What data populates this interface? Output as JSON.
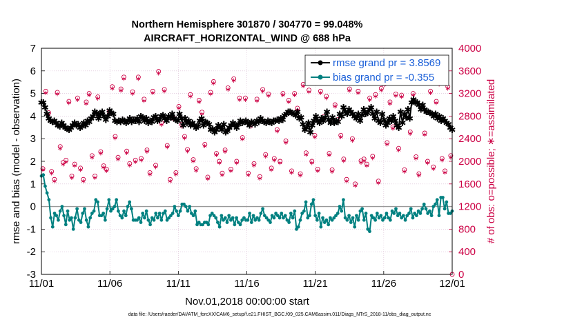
{
  "colors": {
    "rmse": "#000000",
    "bias": "#008080",
    "counts": "#cc0044",
    "rmse_legend_text": "#1a5fd8",
    "grid": "#d9bcd3"
  },
  "chart_data": {
    "type": "line",
    "title_line1": "Northern Hemisphere 301870 / 304770 = 99.048%",
    "title_line2": "AIRCRAFT_HORIZONTAL_WIND @ 688 hPa",
    "xlabel": "Nov.01,2018 00:00:00 start",
    "ylabel_left": "rmse and bias (model - observation)",
    "ylabel_right": "# of obs: o=possible; ∗=assimilated",
    "footer": "data file: /Users/raeder/DAI/ATM_forcXX/CAM6_setup/f.e21.FHIST_BGC.f09_025.CAM6assim.011/Diags_NTrS_2018-11/obs_diag_output.nc",
    "xlim": [
      1,
      31
    ],
    "ylim_left": [
      -3,
      7
    ],
    "ylim_right": [
      0,
      4000
    ],
    "x_ticks": [
      1,
      6,
      11,
      16,
      21,
      26,
      31
    ],
    "x_tick_labels": [
      "11/01",
      "11/06",
      "11/11",
      "11/16",
      "11/21",
      "11/26",
      "12/01"
    ],
    "y_ticks_left": [
      -3,
      -2,
      -1,
      0,
      1,
      2,
      3,
      4,
      5,
      6,
      7
    ],
    "y_ticks_right": [
      0,
      400,
      800,
      1200,
      1600,
      2000,
      2400,
      2800,
      3200,
      3600,
      4000
    ],
    "grid": true,
    "legend_position": "top-right",
    "legend": [
      {
        "label": "rmse grand pr = 3.8569",
        "series": "rmse"
      },
      {
        "label": "bias grand pr = -0.355",
        "series": "bias"
      }
    ],
    "rmse": [
      4.6,
      4.6,
      4.4,
      4.1,
      3.9,
      3.8,
      3.75,
      3.8,
      3.7,
      3.6,
      3.55,
      3.7,
      3.6,
      3.5,
      3.45,
      3.4,
      3.5,
      3.6,
      3.7,
      3.6,
      3.65,
      3.5,
      3.55,
      3.7,
      3.6,
      3.8,
      3.75,
      3.9,
      4.0,
      4.2,
      4.15,
      3.9,
      4.1,
      4.2,
      4.0,
      3.85,
      4.0,
      4.25,
      4.15,
      4.1,
      3.8,
      3.75,
      3.8,
      3.75,
      3.85,
      3.8,
      3.7,
      3.8,
      3.9,
      3.75,
      3.85,
      3.8,
      3.9,
      3.75,
      4.0,
      3.95,
      3.8,
      3.9,
      3.7,
      3.8,
      3.75,
      3.95,
      4.0,
      3.8,
      3.85,
      4.0,
      4.05,
      3.9,
      3.8,
      4.0,
      3.95,
      4.1,
      3.9,
      3.85,
      3.8,
      4.1,
      3.9,
      3.6,
      3.9,
      3.7,
      3.8,
      3.6,
      3.7,
      3.6,
      3.5,
      3.55,
      3.8,
      3.9,
      3.6,
      3.75,
      3.7,
      3.65,
      3.4,
      3.45,
      3.3,
      3.4,
      3.6,
      3.5,
      3.4,
      3.65,
      3.3,
      3.35,
      3.5,
      3.6,
      3.7,
      3.6,
      3.5,
      3.65,
      3.8,
      3.7,
      3.75,
      3.8,
      3.7,
      3.6,
      3.75,
      3.7,
      3.65,
      3.8,
      3.75,
      3.9,
      3.8,
      3.75,
      3.7,
      3.8,
      3.75,
      3.7,
      3.8,
      3.8,
      3.85,
      3.8,
      3.9,
      3.85,
      4.05,
      4.1,
      4.2,
      4.2,
      4.15,
      4.1,
      4.05,
      4.2,
      3.9,
      3.95,
      3.65,
      3.4,
      3.5,
      3.7,
      3.3,
      3.6,
      3.8,
      4.0,
      3.8,
      3.7,
      3.9,
      3.8,
      3.95,
      4.2,
      3.85,
      3.7,
      3.95,
      3.7,
      3.8,
      3.75,
      4.1,
      4.0,
      4.4,
      4.2,
      4.1,
      4.3,
      4.2,
      4.1,
      4.0,
      3.9,
      4.1,
      3.8,
      4.05,
      4.3,
      4.1,
      4.15,
      4.3,
      4.4,
      4.1,
      3.9,
      4.2,
      3.8,
      3.7,
      4.1,
      3.85,
      3.6,
      3.7,
      3.9,
      3.8,
      4.0,
      3.8,
      3.6,
      3.5,
      4.2,
      3.7,
      4.1,
      3.95,
      4.3,
      3.9,
      4.6,
      4.75,
      4.6,
      4.6,
      4.5,
      4.3,
      4.5,
      4.3,
      4.2,
      4.2,
      4.15,
      4.1,
      4.0,
      4.1,
      3.9,
      4.0,
      3.8,
      3.9,
      3.8,
      3.7,
      3.65,
      3.5,
      3.4
    ],
    "bias": [
      1.35,
      1.4,
      0.9,
      0.6,
      0.3,
      -0.5,
      -0.9,
      -0.3,
      -0.4,
      -0.6,
      -0.2,
      0.0,
      -0.4,
      -0.8,
      -0.2,
      -0.6,
      -0.5,
      -1.0,
      -0.5,
      -0.1,
      -0.6,
      -0.7,
      -0.3,
      -0.1,
      -0.6,
      -0.9,
      -0.5,
      -0.3,
      -0.2,
      0.3,
      0.2,
      -0.4,
      -0.4,
      -0.3,
      -0.6,
      -0.1,
      0.3,
      -0.2,
      -0.1,
      0.0,
      0.3,
      -0.2,
      -0.4,
      -0.5,
      -0.2,
      -0.4,
      0.0,
      0.2,
      -0.1,
      -0.6,
      -0.6,
      -0.6,
      -0.5,
      -0.7,
      -0.3,
      -0.5,
      -0.2,
      -0.6,
      -0.8,
      -0.5,
      -0.6,
      -0.3,
      -0.5,
      -0.3,
      -0.6,
      -0.3,
      -0.2,
      -0.6,
      -0.5,
      -0.4,
      -0.3,
      0.0,
      -0.2,
      -0.4,
      -0.2,
      0.1,
      0.1,
      0.0,
      -0.2,
      0.0,
      -0.3,
      -0.4,
      -0.2,
      -0.8,
      -0.7,
      -0.8,
      -0.8,
      -0.7,
      -0.7,
      -0.8,
      -0.4,
      -0.3,
      -0.4,
      -0.5,
      -0.7,
      -0.9,
      -0.4,
      -0.6,
      -0.5,
      -0.7,
      -0.4,
      -0.6,
      -0.5,
      -0.8,
      -0.5,
      -0.7,
      -0.8,
      -0.6,
      -0.5,
      -0.6,
      -0.6,
      -0.3,
      -0.7,
      -0.4,
      -0.6,
      -0.5,
      -0.6,
      -0.3,
      -0.1,
      -0.4,
      -0.5,
      -0.6,
      -0.7,
      -0.4,
      -0.5,
      -0.3,
      -0.4,
      -0.5,
      -0.3,
      -0.5,
      -0.4,
      -0.6,
      -0.7,
      -0.3,
      -0.5,
      -0.2,
      -1.0,
      -0.9,
      -0.6,
      -0.3,
      -0.2,
      0.2,
      -0.5,
      -0.4,
      0.1,
      0.3,
      -0.4,
      -0.6,
      -0.3,
      -0.9,
      -0.5,
      -0.7,
      -0.6,
      -0.8,
      -0.5,
      -0.6,
      -0.5,
      -0.4,
      -0.3,
      0.0,
      -0.2,
      0.3,
      -0.5,
      -0.6,
      -0.4,
      -0.7,
      -0.5,
      -0.9,
      -0.4,
      -0.6,
      -0.2,
      -0.1,
      -0.6,
      -0.3,
      -1.0,
      -1.1,
      -0.4,
      -0.5,
      -0.6,
      -0.3,
      -0.5,
      -0.4,
      -0.6,
      -0.5,
      -0.3,
      -0.5,
      -0.6,
      -0.2,
      -0.3,
      -0.1,
      -0.4,
      -0.3,
      -0.5,
      -0.4,
      -0.6,
      -0.4,
      -0.3,
      -0.1,
      -0.5,
      -0.3,
      -0.4,
      -0.2,
      -0.3,
      -0.1,
      0.1,
      -0.1,
      -0.3,
      -0.2,
      -0.4,
      0.0,
      0.1,
      0.3,
      -0.4,
      0.4,
      0.4,
      -0.1,
      0.2,
      -0.3,
      -0.3,
      -0.2
    ],
    "obs_possible": [
      1870,
      3240,
      2860,
      1820,
      1680,
      3220,
      2260,
      1980,
      2020,
      3060,
      1740,
      1950,
      3120,
      1880,
      1680,
      3050,
      3200,
      2100,
      1740,
      3140,
      2170,
      1920,
      1860,
      2880,
      3320,
      2440,
      2070,
      3280,
      3490,
      2180,
      1960,
      3230,
      2020,
      3490,
      2050,
      3100,
      2200,
      1800,
      3240,
      1930,
      3590,
      2680,
      3270,
      2280,
      1680,
      2780,
      1800,
      2970,
      2650,
      2440,
      2210,
      3180,
      2030,
      1870,
      3080,
      2870,
      2300,
      1720,
      3220,
      3410,
      2140,
      2000,
      1790,
      2200,
      3300,
      1860,
      3460,
      2000,
      3120,
      2420,
      3120,
      1790,
      2650,
      1960,
      3100,
      1730,
      3270,
      2120,
      3190,
      1880,
      2050,
      2560,
      2000,
      3200,
      2360,
      3080,
      1830,
      3200,
      2940,
      1780,
      3360,
      2150,
      3260,
      2000,
      2460,
      1860,
      3240,
      2790,
      3150,
      2140,
      1850,
      3000,
      2740,
      2460,
      2040,
      1680,
      3280,
      2400,
      1600,
      3240,
      2010,
      2040,
      1950,
      3120,
      2090,
      3180,
      1650,
      3290,
      3380,
      2330,
      3050,
      2610,
      3190,
      2230,
      3170,
      1850,
      3500,
      2520,
      3200,
      2080,
      1780,
      3430,
      2500,
      2000,
      3240,
      1900,
      3060,
      3390,
      2050,
      1830,
      3320,
      2100
    ],
    "obs_assimilated": [
      1860,
      3220,
      2840,
      1800,
      1660,
      3200,
      2240,
      1960,
      2000,
      3040,
      1720,
      1930,
      3100,
      1860,
      1660,
      3030,
      3180,
      2080,
      1720,
      3120,
      2150,
      1900,
      1840,
      2860,
      3300,
      2420,
      2050,
      3260,
      3470,
      2160,
      1940,
      3210,
      2000,
      3470,
      2030,
      3080,
      2180,
      1780,
      3220,
      1910,
      3570,
      2660,
      3250,
      2260,
      1660,
      2760,
      1780,
      2950,
      2630,
      2420,
      2190,
      3160,
      2010,
      1850,
      3060,
      2850,
      2280,
      1700,
      3200,
      3390,
      2120,
      1980,
      1770,
      2180,
      3280,
      1840,
      3440,
      1980,
      3100,
      2400,
      3100,
      1770,
      2630,
      1940,
      3080,
      1710,
      3250,
      2100,
      3170,
      1860,
      2030,
      2540,
      1980,
      3180,
      2340,
      3060,
      1810,
      3180,
      2920,
      1760,
      3340,
      2130,
      3240,
      1980,
      2440,
      1840,
      3220,
      2770,
      3130,
      2120,
      1830,
      2980,
      2720,
      2440,
      2020,
      1660,
      3260,
      2380,
      1580,
      3220,
      1990,
      2020,
      1930,
      3100,
      2070,
      3160,
      1630,
      3270,
      3360,
      2310,
      3030,
      2590,
      3170,
      2210,
      3150,
      1830,
      3480,
      2500,
      3180,
      2060,
      1760,
      3410,
      2480,
      1980,
      3220,
      1880,
      3040,
      3370,
      2030,
      1810,
      3300,
      2080
    ]
  }
}
